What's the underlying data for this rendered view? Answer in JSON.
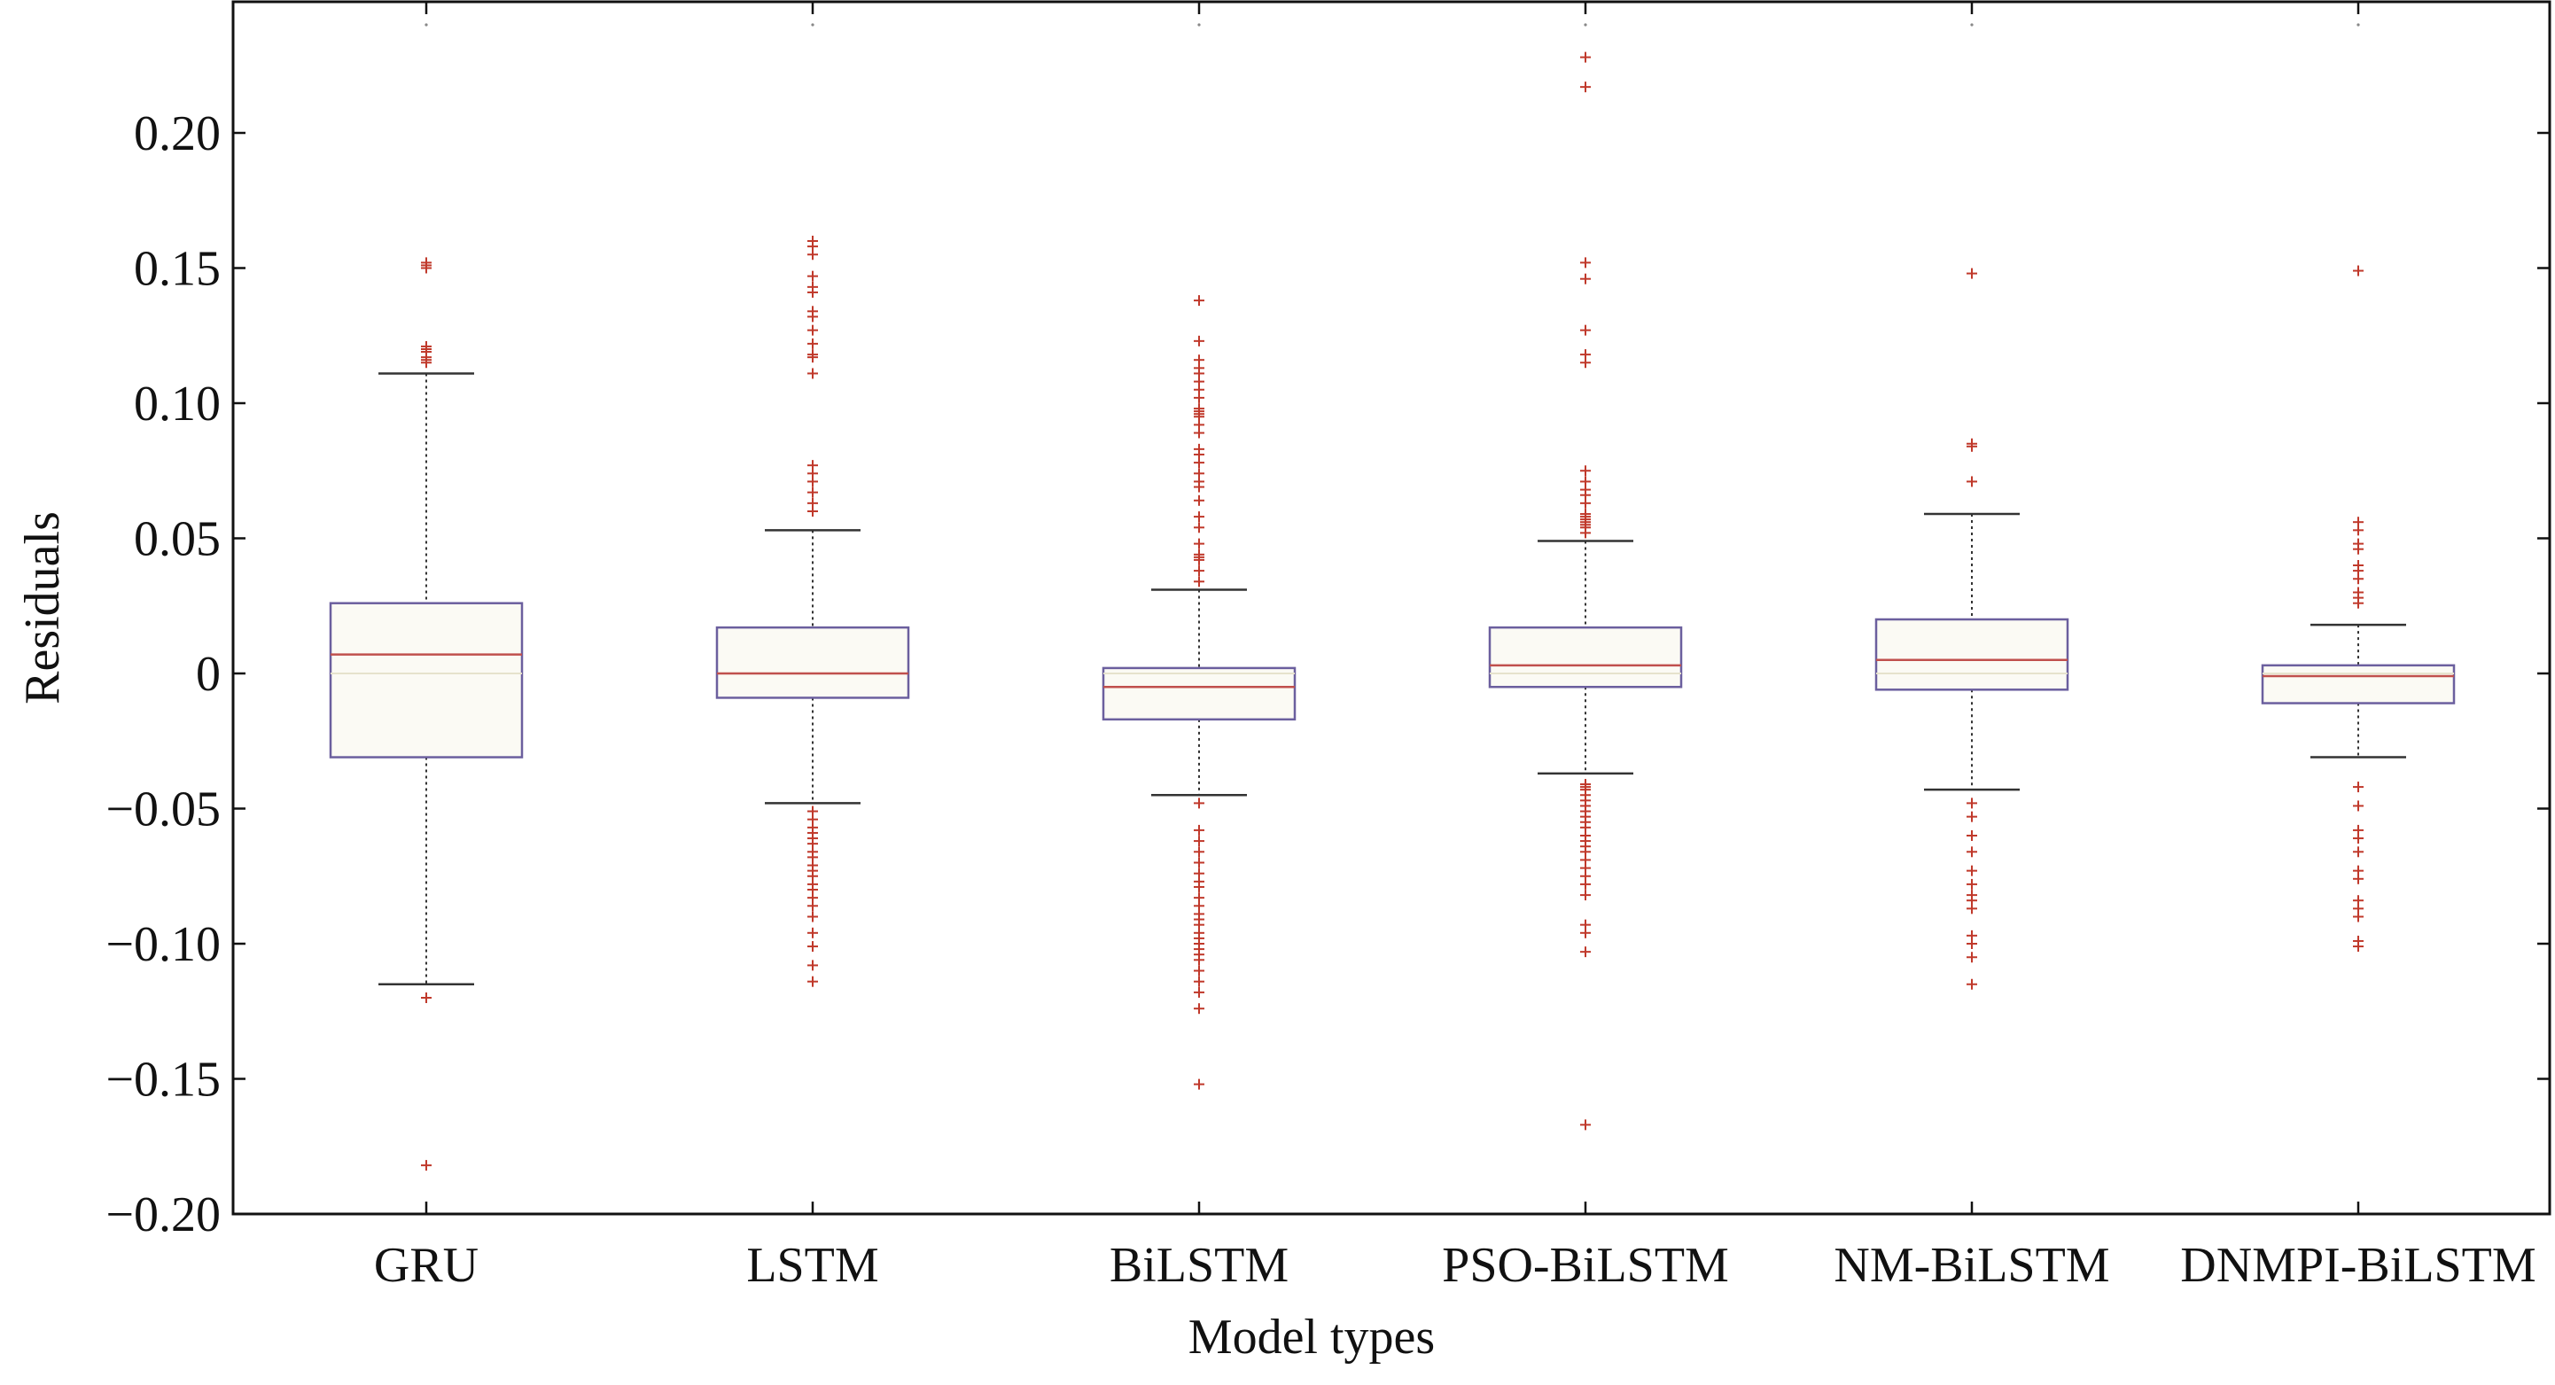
{
  "chart_data": {
    "type": "box",
    "title": "",
    "xlabel": "Model types",
    "ylabel": "Residuals",
    "ylim": [
      -0.2,
      0.24
    ],
    "yticks": [
      0.2,
      0.15,
      0.1,
      0.05,
      0,
      -0.05,
      -0.1,
      -0.15,
      -0.2
    ],
    "ytick_labels": [
      "0.20",
      "0.15",
      "0.10",
      "0.05",
      "0",
      "−0.05",
      "−0.10",
      "−0.15",
      "−0.20"
    ],
    "grid": false,
    "categories": [
      "GRU",
      "LSTM",
      "BiLSTM",
      "PSO-BiLSTM",
      "NM-BiLSTM",
      "DNMPI-BiLSTM"
    ],
    "boxes": [
      {
        "category": "GRU",
        "whisker_low": -0.115,
        "q1": -0.031,
        "median": 0.007,
        "q3": 0.026,
        "whisker_high": 0.111,
        "outliers": [
          0.152,
          0.151,
          0.15,
          0.121,
          0.12,
          0.119,
          0.117,
          0.116,
          0.115,
          -0.12,
          -0.182
        ]
      },
      {
        "category": "LSTM",
        "whisker_low": -0.048,
        "q1": -0.009,
        "median": 0.0,
        "q3": 0.017,
        "whisker_high": 0.053,
        "outliers": [
          0.16,
          0.158,
          0.155,
          0.147,
          0.143,
          0.141,
          0.134,
          0.132,
          0.127,
          0.122,
          0.118,
          0.117,
          0.111,
          0.077,
          0.074,
          0.071,
          0.067,
          0.063,
          0.06,
          -0.051,
          -0.054,
          -0.057,
          -0.059,
          -0.061,
          -0.063,
          -0.066,
          -0.068,
          -0.071,
          -0.073,
          -0.075,
          -0.078,
          -0.08,
          -0.083,
          -0.086,
          -0.09,
          -0.096,
          -0.101,
          -0.108,
          -0.114
        ]
      },
      {
        "category": "BiLSTM",
        "whisker_low": -0.045,
        "q1": -0.017,
        "median": -0.005,
        "q3": 0.002,
        "whisker_high": 0.031,
        "outliers": [
          0.138,
          0.123,
          0.116,
          0.113,
          0.111,
          0.108,
          0.105,
          0.102,
          0.098,
          0.097,
          0.096,
          0.095,
          0.092,
          0.089,
          0.083,
          0.081,
          0.078,
          0.074,
          0.071,
          0.069,
          0.064,
          0.058,
          0.054,
          0.048,
          0.044,
          0.043,
          0.042,
          0.038,
          0.034,
          -0.048,
          -0.058,
          -0.062,
          -0.066,
          -0.07,
          -0.074,
          -0.077,
          -0.079,
          -0.083,
          -0.086,
          -0.089,
          -0.091,
          -0.093,
          -0.096,
          -0.098,
          -0.1,
          -0.102,
          -0.104,
          -0.106,
          -0.11,
          -0.114,
          -0.118,
          -0.124,
          -0.152
        ]
      },
      {
        "category": "PSO-BiLSTM",
        "whisker_low": -0.037,
        "q1": -0.005,
        "median": 0.003,
        "q3": 0.017,
        "whisker_high": 0.049,
        "outliers": [
          0.228,
          0.217,
          0.152,
          0.146,
          0.127,
          0.118,
          0.115,
          0.075,
          0.071,
          0.068,
          0.066,
          0.063,
          0.059,
          0.058,
          0.057,
          0.056,
          0.055,
          0.054,
          0.052,
          -0.041,
          -0.042,
          -0.043,
          -0.045,
          -0.047,
          -0.049,
          -0.051,
          -0.053,
          -0.055,
          -0.057,
          -0.06,
          -0.062,
          -0.064,
          -0.066,
          -0.069,
          -0.072,
          -0.075,
          -0.078,
          -0.082,
          -0.093,
          -0.096,
          -0.103,
          -0.167
        ]
      },
      {
        "category": "NM-BiLSTM",
        "whisker_low": -0.043,
        "q1": -0.006,
        "median": 0.005,
        "q3": 0.02,
        "whisker_high": 0.059,
        "outliers": [
          0.148,
          0.085,
          0.084,
          0.071,
          -0.048,
          -0.053,
          -0.06,
          -0.066,
          -0.073,
          -0.078,
          -0.082,
          -0.084,
          -0.087,
          -0.097,
          -0.1,
          -0.105,
          -0.115
        ]
      },
      {
        "category": "DNMPI-BiLSTM",
        "whisker_low": -0.031,
        "q1": -0.011,
        "median": -0.001,
        "q3": 0.003,
        "whisker_high": 0.018,
        "outliers": [
          0.149,
          0.056,
          0.053,
          0.048,
          0.046,
          0.04,
          0.038,
          0.035,
          0.03,
          0.028,
          0.026,
          -0.042,
          -0.049,
          -0.058,
          -0.061,
          -0.066,
          -0.073,
          -0.076,
          -0.084,
          -0.087,
          -0.09,
          -0.099,
          -0.101
        ]
      }
    ],
    "colors": {
      "box": "#6b5f9e",
      "median": "#c0504d",
      "outlier": "#c0392b",
      "whisker": "#333333",
      "box_fill": "#fbfaf4",
      "axis": "#111111"
    }
  }
}
